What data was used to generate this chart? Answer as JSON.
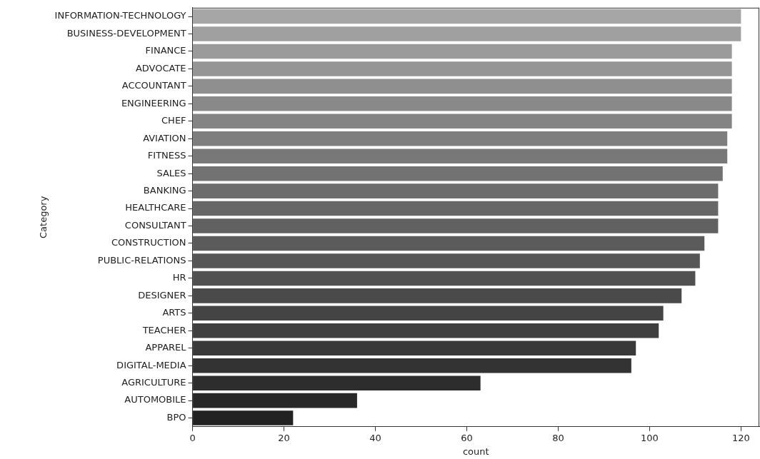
{
  "chart_data": {
    "type": "bar",
    "orientation": "horizontal",
    "xlabel": "count",
    "ylabel": "Category",
    "categories": [
      "INFORMATION-TECHNOLOGY",
      "BUSINESS-DEVELOPMENT",
      "FINANCE",
      "ADVOCATE",
      "ACCOUNTANT",
      "ENGINEERING",
      "CHEF",
      "AVIATION",
      "FITNESS",
      "SALES",
      "BANKING",
      "HEALTHCARE",
      "CONSULTANT",
      "CONSTRUCTION",
      "PUBLIC-RELATIONS",
      "HR",
      "DESIGNER",
      "ARTS",
      "TEACHER",
      "APPAREL",
      "DIGITAL-MEDIA",
      "AGRICULTURE",
      "AUTOMOBILE",
      "BPO"
    ],
    "values": [
      120,
      120,
      118,
      118,
      118,
      118,
      118,
      117,
      117,
      116,
      115,
      115,
      115,
      112,
      111,
      110,
      107,
      103,
      102,
      97,
      96,
      63,
      36,
      22
    ],
    "colors": [
      "#a6a6a6",
      "#a0a0a0",
      "#9b9b9b",
      "#959595",
      "#8f8f8f",
      "#898989",
      "#848484",
      "#7e7e7e",
      "#787878",
      "#727272",
      "#6d6d6d",
      "#676767",
      "#616161",
      "#5b5b5b",
      "#565656",
      "#505050",
      "#4a4a4a",
      "#444444",
      "#3f3f3f",
      "#393939",
      "#333333",
      "#2d2d2d",
      "#282828",
      "#222222"
    ],
    "xlim": [
      0,
      124
    ],
    "xticks": [
      0,
      20,
      40,
      60,
      80,
      100,
      120
    ]
  }
}
